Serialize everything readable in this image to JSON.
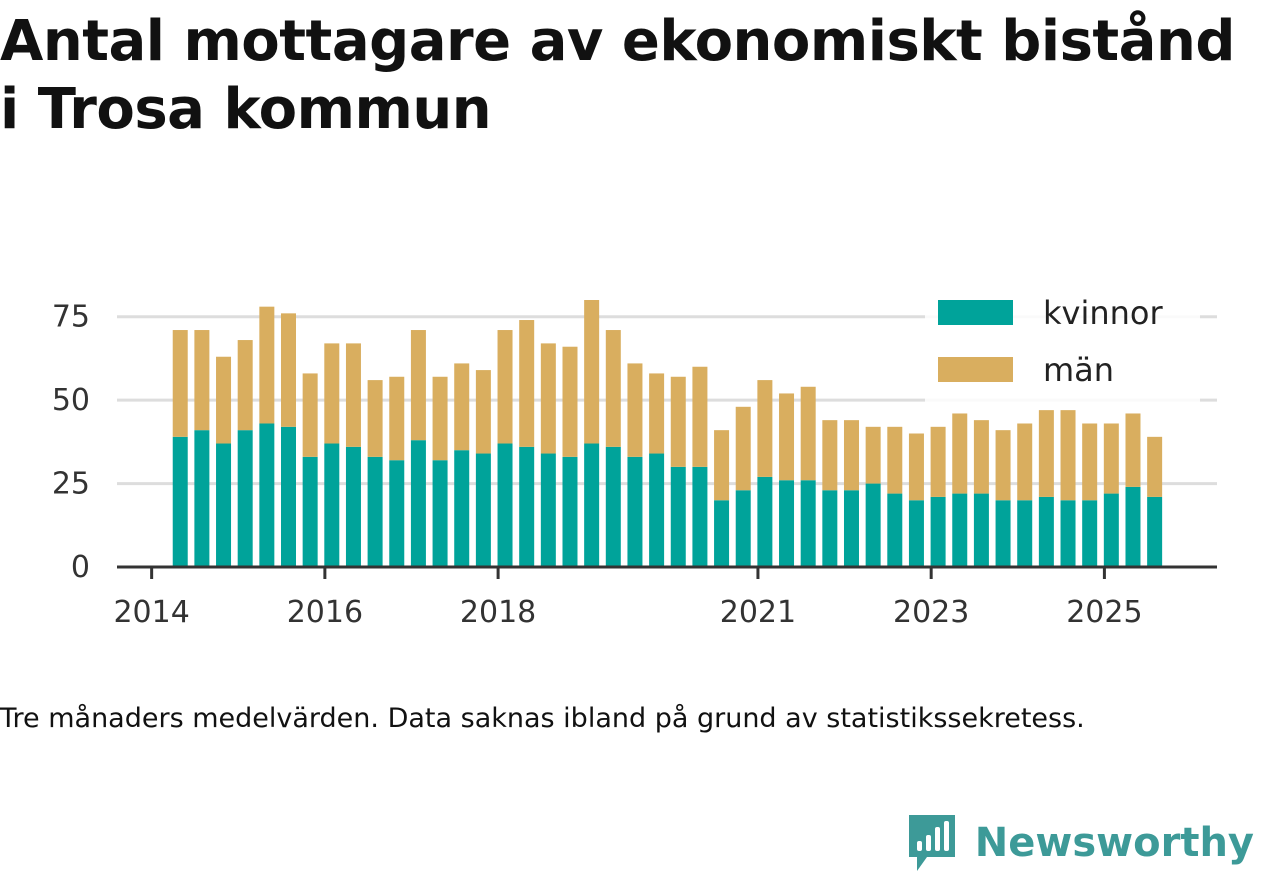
{
  "title": "Antal mottagare av ekonomiskt bistånd i Trosa kommun",
  "caption": "Tre månaders medelvärden. Data saknas ibland på grund av statistikssekretess.",
  "brand": {
    "name": "Newsworthy",
    "icon": "newsworthy-logo-icon"
  },
  "colors": {
    "kvinnor": "#00a39a",
    "man": "#d9ae5f",
    "grid": "#dddddd",
    "axis": "#333333",
    "brand": "#3d9a98"
  },
  "chart_data": {
    "type": "bar",
    "stacked": true,
    "title": "Antal mottagare av ekonomiskt bistånd i Trosa kommun",
    "xlabel": "",
    "ylabel": "",
    "ylim": [
      0,
      80
    ],
    "xlim": [
      2013.6,
      2026.3
    ],
    "yticks": [
      0,
      25,
      50,
      75
    ],
    "xticks": [
      {
        "value": 2014.0,
        "label": "2014"
      },
      {
        "value": 2016.0,
        "label": "2016"
      },
      {
        "value": 2018.0,
        "label": "2018"
      },
      {
        "value": 2021.0,
        "label": "2021"
      },
      {
        "value": 2023.0,
        "label": "2023"
      },
      {
        "value": 2025.0,
        "label": "2025"
      }
    ],
    "grid": true,
    "legend_position": "top-right",
    "legend": [
      {
        "key": "kvinnor",
        "label": "kvinnor"
      },
      {
        "key": "man",
        "label": "män"
      }
    ],
    "x": [
      2014.33,
      2014.58,
      2014.83,
      2015.08,
      2015.33,
      2015.58,
      2015.83,
      2016.08,
      2016.33,
      2016.58,
      2016.83,
      2017.08,
      2017.33,
      2017.58,
      2017.83,
      2018.08,
      2018.33,
      2018.58,
      2018.83,
      2019.08,
      2019.33,
      2019.58,
      2019.83,
      2020.08,
      2020.33,
      2020.58,
      2020.83,
      2021.08,
      2021.33,
      2021.58,
      2021.83,
      2022.08,
      2022.33,
      2022.58,
      2022.83,
      2023.08,
      2023.33,
      2023.58,
      2023.83,
      2024.08,
      2024.33,
      2024.58,
      2024.83,
      2025.08,
      2025.33,
      2025.58
    ],
    "series": [
      {
        "name": "kvinnor",
        "values": [
          39,
          41,
          37,
          41,
          43,
          42,
          33,
          37,
          36,
          33,
          32,
          38,
          32,
          35,
          34,
          37,
          36,
          34,
          33,
          37,
          36,
          33,
          34,
          30,
          30,
          20,
          23,
          27,
          26,
          26,
          23,
          23,
          25,
          22,
          20,
          21,
          22,
          22,
          20,
          20,
          21,
          20,
          20,
          22,
          24,
          21
        ]
      },
      {
        "name": "män",
        "values": [
          32,
          30,
          26,
          27,
          35,
          34,
          25,
          30,
          31,
          23,
          25,
          33,
          25,
          26,
          25,
          34,
          38,
          33,
          33,
          43,
          35,
          28,
          24,
          27,
          30,
          21,
          25,
          29,
          26,
          28,
          21,
          21,
          17,
          20,
          20,
          21,
          24,
          22,
          21,
          23,
          26,
          27,
          23,
          21,
          22,
          18
        ]
      }
    ]
  }
}
